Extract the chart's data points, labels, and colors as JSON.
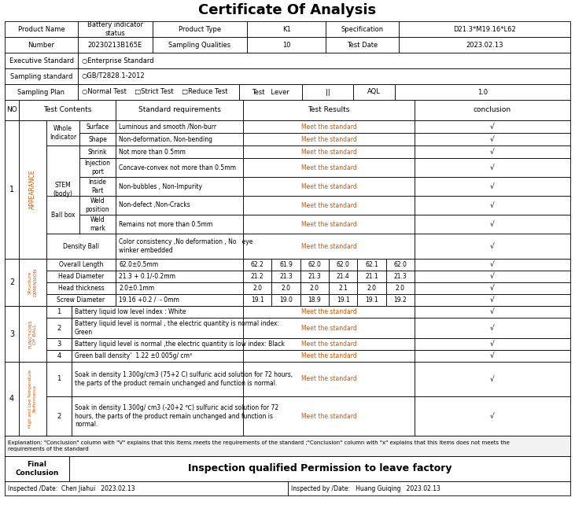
{
  "title": "Certificate Of Analysis",
  "bg_color": "#ffffff",
  "border_color": "#000000",
  "text_color": "#000000",
  "orange_color": "#c55a11",
  "header": [
    {
      "label": "Product Name",
      "value": "Battery indicator\nstatus",
      "label2": "Product Type",
      "value2": "K1",
      "label3": "Specification",
      "value3": "D21.3*M19.16*L62"
    },
    {
      "label": "Number",
      "value": "20230213B165E",
      "label2": "Sampling Qualities",
      "value2": "10",
      "label3": "Test Date",
      "value3": "2023.02.13"
    },
    {
      "label": "Executive Standard",
      "value": "○Enterprise Standard"
    },
    {
      "label": "Sampling standard",
      "value": "○GB/T2828.1-2012"
    },
    {
      "label": "Sampling Plan",
      "value": "○Normal Test    □Strict Test    □Reduce Test",
      "testlever": "Test   Lever",
      "roman": "||",
      "aql": "AQL",
      "aqlval": "1.0"
    }
  ],
  "s1_rows": [
    {
      "sub3": "Surface",
      "std": "Luminous and smooth /Non-burr",
      "rh": 16
    },
    {
      "sub3": "Shape",
      "std": "Non-deformation, Non-bending",
      "rh": 16
    },
    {
      "sub3": "Shrink",
      "std": "Not more than 0.5mm",
      "rh": 16
    },
    {
      "sub3": "Injection\nport",
      "std": "Concave-convex not more than 0.5mm",
      "rh": 24
    },
    {
      "sub3": "Inside\nPart",
      "std": "Non-bubbles , Non-Impurity",
      "rh": 24
    },
    {
      "sub3": "Weld\nposition",
      "std": "Non-defect ,Non-Cracks",
      "rh": 24
    },
    {
      "sub3": "Weld\nmark",
      "std": "Remains not more than 0.5mm",
      "rh": 24
    }
  ],
  "s1_density": {
    "std": "Color consistency ,No deformation , No   eye\nwinker embedded",
    "rh": 32
  },
  "s2_rows": [
    {
      "name": "Overall Length",
      "std": "62.0±0.5mm",
      "vals": [
        "62.2",
        "61.9",
        "62.0",
        "62.0",
        "62.1",
        "62.0"
      ],
      "rh": 15
    },
    {
      "name": "Head Diameter",
      "std": "21.3 + 0.1/-0.2mm",
      "vals": [
        "21.2",
        "21.3",
        "21.3",
        "21.4",
        "21.1",
        "21.3"
      ],
      "rh": 15
    },
    {
      "name": "Head thickness",
      "std": "2.0±0.1mm",
      "vals": [
        "2.0",
        "2.0",
        "2.0",
        "2.1",
        "2.0",
        "2.0"
      ],
      "rh": 15
    },
    {
      "name": "Screw Diameter",
      "std": "19.16 +0.2 /  - 0mm",
      "vals": [
        "19.1",
        "19.0",
        "18.9",
        "19.1",
        "19.1",
        "19.2"
      ],
      "rh": 15
    }
  ],
  "s3_rows": [
    {
      "num": "1",
      "desc": "Battery liquid low level index : White",
      "rh": 15
    },
    {
      "num": "2",
      "desc": "Battery liquid level is normal , the electric quantity is normal index:\nGreen",
      "rh": 26
    },
    {
      "num": "3",
      "desc": "Battery liquid level is normal ,the electric quantity is low index: Black",
      "rh": 15
    },
    {
      "num": "4",
      "desc": "Green ball density’  1.22 ±0.005g/ cm³",
      "rh": 15
    }
  ],
  "s4_rows": [
    {
      "num": "1",
      "desc": "Soak in density 1.300g/cm3 (75+2 C) sulfuric acid solution for 72 hours,\nthe parts of the product remain unchanged and function is normal.",
      "rh": 44
    },
    {
      "num": "2",
      "desc": "Soak in density 1.300g/ cm3 (-20+2 ℃) sulfuric acid solution for 72\nhours, the parts of the product remain unchanged and function is\nnormal.",
      "rh": 50
    }
  ],
  "explanation": "Explanation: \"Conclusion\" column with \"V\" explains that this items meets the requirements of the standard ;\"Conclusion\" column with \"x\" explains that this items does not meets the\nrequirements of the standard",
  "final_text": "Inspection qualified Permission to leave factory",
  "insp_left": "Inspected /Date:  Chen Jiahui   2023.02.13",
  "insp_right": "Inspected by /Date:   Huang Guiqing   2023.02.13"
}
